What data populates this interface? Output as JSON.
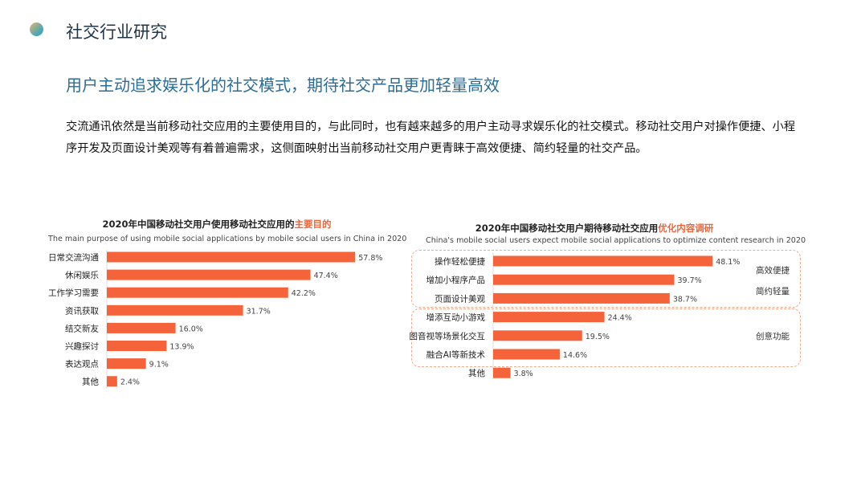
{
  "header": {
    "title": "社交行业研究"
  },
  "headline": "用户主动追求娱乐化的社交模式，期待社交产品更加轻量高效",
  "paragraph": "交流通讯依然是当前移动社交应用的主要使用目的，与此同时，也有越来越多的用户主动寻求娱乐化的社交模式。移动社交用户对操作便捷、小程序开发及页面设计美观等有着普遍需求，这侧面映射出当前移动社交用户更青睐于高效便捷、简约轻量的社交产品。",
  "colors": {
    "bar": "#f4633a",
    "accent": "#f0643a",
    "title": "#1f3446",
    "headline": "#2a6d9a"
  },
  "chart_data": [
    {
      "type": "bar",
      "orientation": "horizontal",
      "title_prefix": "2020年中国移动社交用户使用移动社交应用的",
      "title_highlight": "主要目的",
      "subtitle": "The main purpose of using mobile social applications by mobile social users in China in 2020",
      "categories": [
        "日常交流沟通",
        "休闲娱乐",
        "工作学习需要",
        "资讯获取",
        "结交新友",
        "兴趣探讨",
        "表达观点",
        "其他"
      ],
      "values": [
        57.8,
        47.4,
        42.2,
        31.7,
        16.0,
        13.9,
        9.1,
        2.4
      ],
      "labels": [
        "57.8%",
        "47.4%",
        "42.2%",
        "31.7%",
        "16.0%",
        "13.9%",
        "9.1%",
        "2.4%"
      ],
      "unit": "%",
      "xlim": [
        0,
        60
      ]
    },
    {
      "type": "bar",
      "orientation": "horizontal",
      "title_prefix": "2020年中国移动社交用户期待移动社交应用",
      "title_highlight": "优化内容调研",
      "subtitle": "China's mobile social users expect mobile social applications to optimize content research in 2020",
      "categories": [
        "操作轻松便捷",
        "增加小程序产品",
        "页面设计美观",
        "增添互动小游戏",
        "图音视等场景化交互",
        "融合AI等新技术",
        "其他"
      ],
      "values": [
        48.1,
        39.7,
        38.7,
        24.4,
        19.5,
        14.6,
        3.8
      ],
      "labels": [
        "48.1%",
        "39.7%",
        "38.7%",
        "24.4%",
        "19.5%",
        "14.6%",
        "3.8%"
      ],
      "unit": "%",
      "xlim": [
        0,
        50
      ],
      "groups": [
        {
          "labels": [
            "高效便捷",
            "简约轻量"
          ],
          "rows": [
            0,
            1,
            2
          ]
        },
        {
          "labels": [
            "创意功能"
          ],
          "rows": [
            3,
            4,
            5
          ]
        }
      ]
    }
  ]
}
